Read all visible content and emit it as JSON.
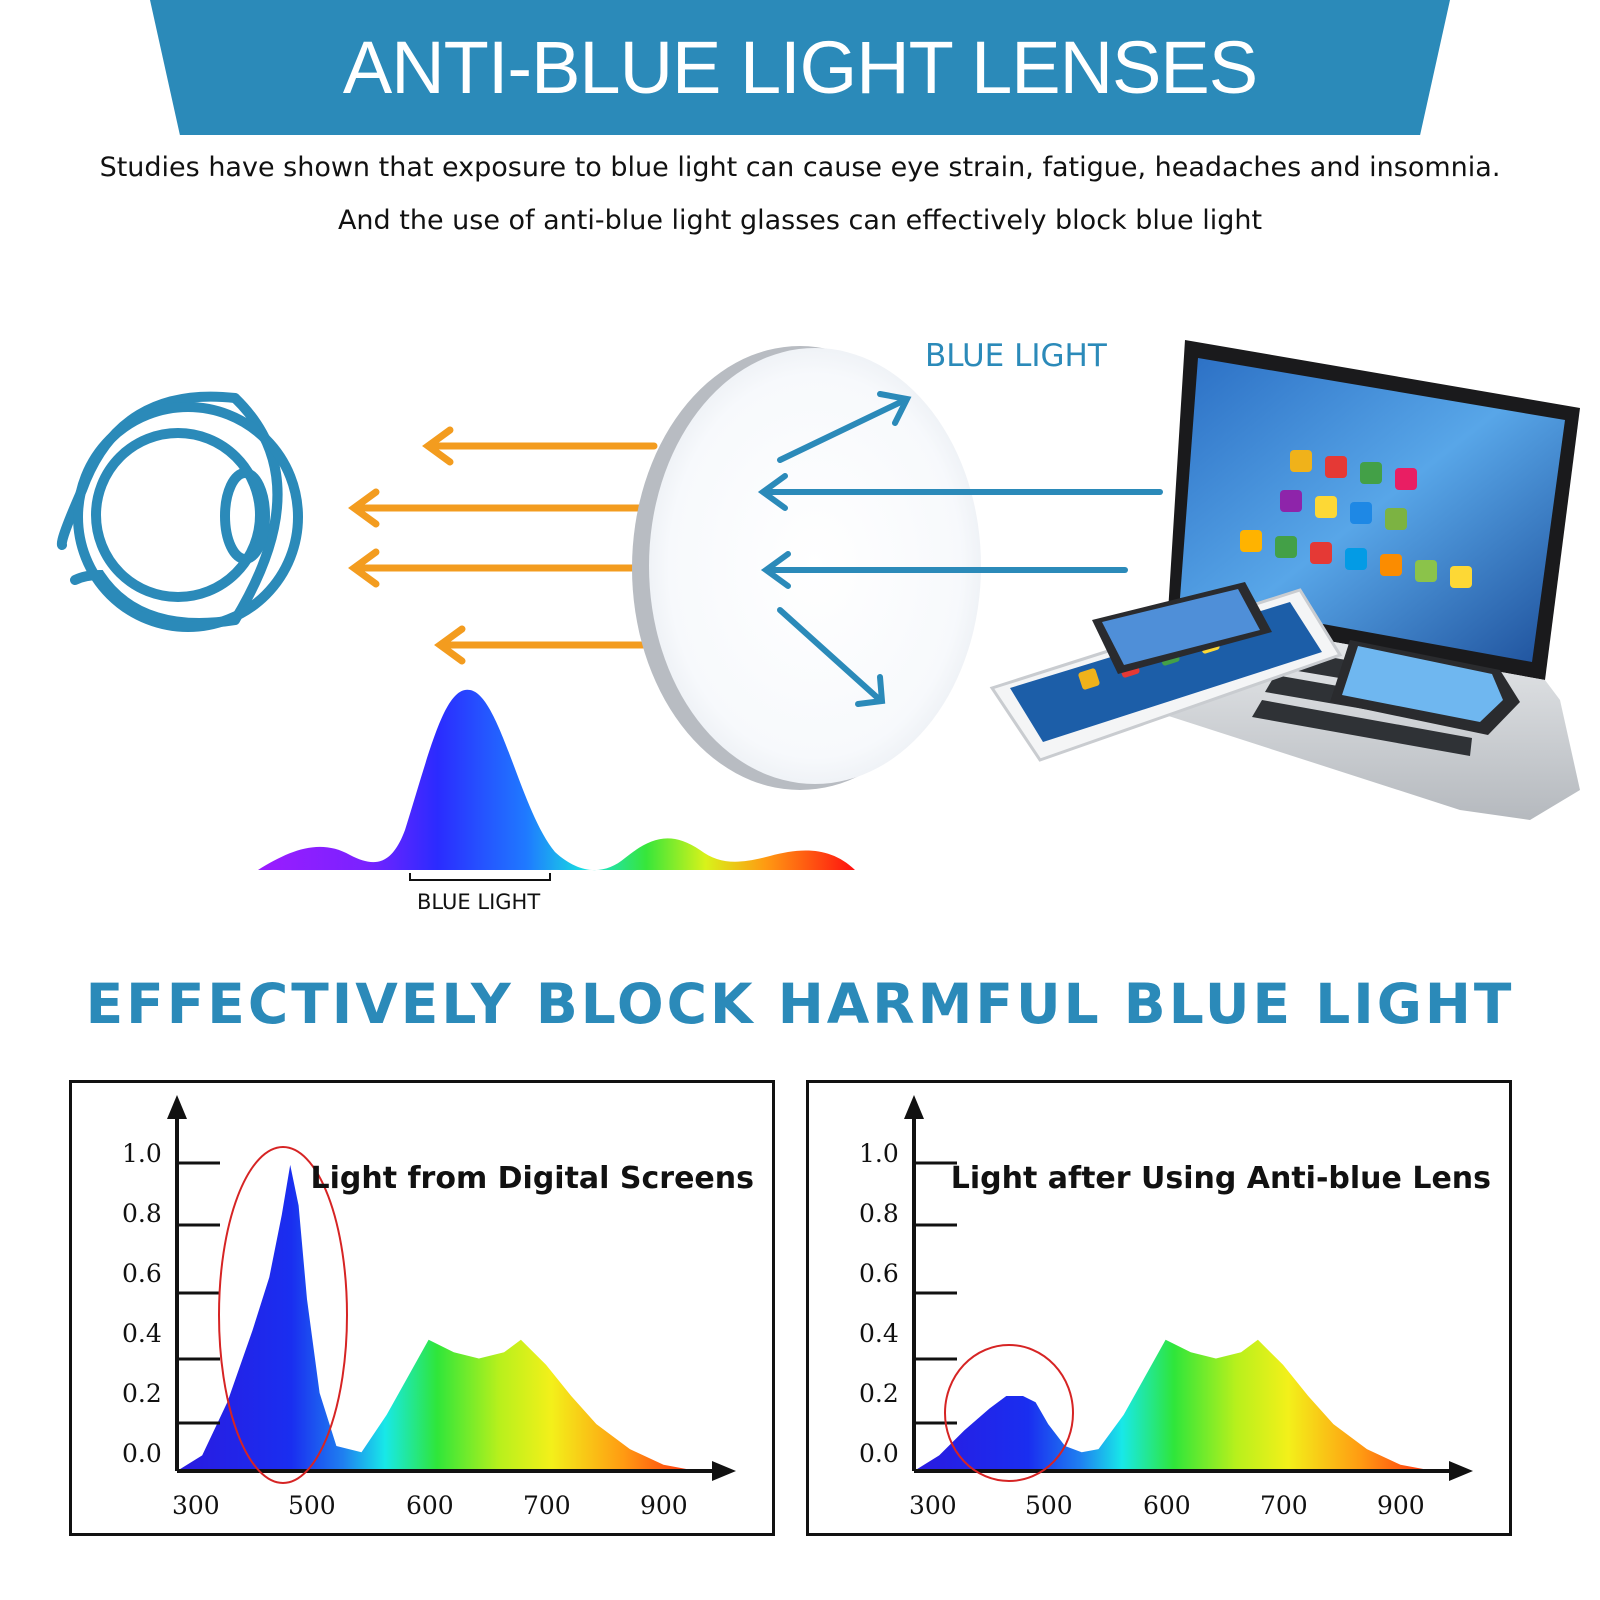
{
  "header": {
    "title": "ANTI-BLUE LIGHT LENSES"
  },
  "intro": {
    "line1": "Studies have shown that exposure to blue light can cause eye strain, fatigue, headaches and insomnia.",
    "line2": "And the use of anti-blue light glasses can effectively block blue light"
  },
  "diagram": {
    "blue_light_label": "BLUE LIGHT",
    "spectrum_label": "BLUE LIGHT",
    "icons": [
      "eye-icon",
      "lens",
      "laptop",
      "tablet",
      "phone"
    ]
  },
  "section": {
    "title": "EFFECTIVELY BLOCK HARMFUL BLUE LIGHT"
  },
  "chart_data": [
    {
      "type": "area",
      "title": "Light from Digital Screens",
      "x_tick_labels": [
        "300",
        "500",
        "600",
        "700",
        "900"
      ],
      "y_tick_labels": [
        "1.0",
        "0.8",
        "0.6",
        "0.4",
        "0.2",
        "0.0"
      ],
      "x": [
        300,
        330,
        360,
        390,
        410,
        425,
        435,
        445,
        455,
        470,
        490,
        520,
        550,
        600,
        630,
        660,
        690,
        710,
        740,
        770,
        800,
        840,
        880,
        920
      ],
      "y": [
        0.0,
        0.05,
        0.22,
        0.45,
        0.62,
        0.82,
        0.98,
        0.85,
        0.55,
        0.25,
        0.08,
        0.06,
        0.18,
        0.42,
        0.38,
        0.36,
        0.38,
        0.42,
        0.34,
        0.24,
        0.15,
        0.07,
        0.02,
        0.0
      ],
      "highlight": "blue peak circled in red"
    },
    {
      "type": "area",
      "title": "Light after Using Anti-blue Lens",
      "x_tick_labels": [
        "300",
        "500",
        "600",
        "700",
        "900"
      ],
      "y_tick_labels": [
        "1.0",
        "0.8",
        "0.6",
        "0.4",
        "0.2",
        "0.0"
      ],
      "x": [
        300,
        330,
        360,
        390,
        410,
        430,
        445,
        460,
        480,
        500,
        520,
        550,
        600,
        630,
        660,
        690,
        710,
        740,
        770,
        800,
        840,
        880,
        920
      ],
      "y": [
        0.0,
        0.05,
        0.13,
        0.2,
        0.24,
        0.24,
        0.22,
        0.15,
        0.08,
        0.06,
        0.07,
        0.18,
        0.42,
        0.38,
        0.36,
        0.38,
        0.42,
        0.34,
        0.24,
        0.15,
        0.07,
        0.02,
        0.0
      ],
      "highlight": "reduced blue peak circled in red"
    }
  ],
  "colors": {
    "brand_blue": "#2b8ab9",
    "arrow_orange": "#f39c1f",
    "highlight_red": "#d62424"
  }
}
